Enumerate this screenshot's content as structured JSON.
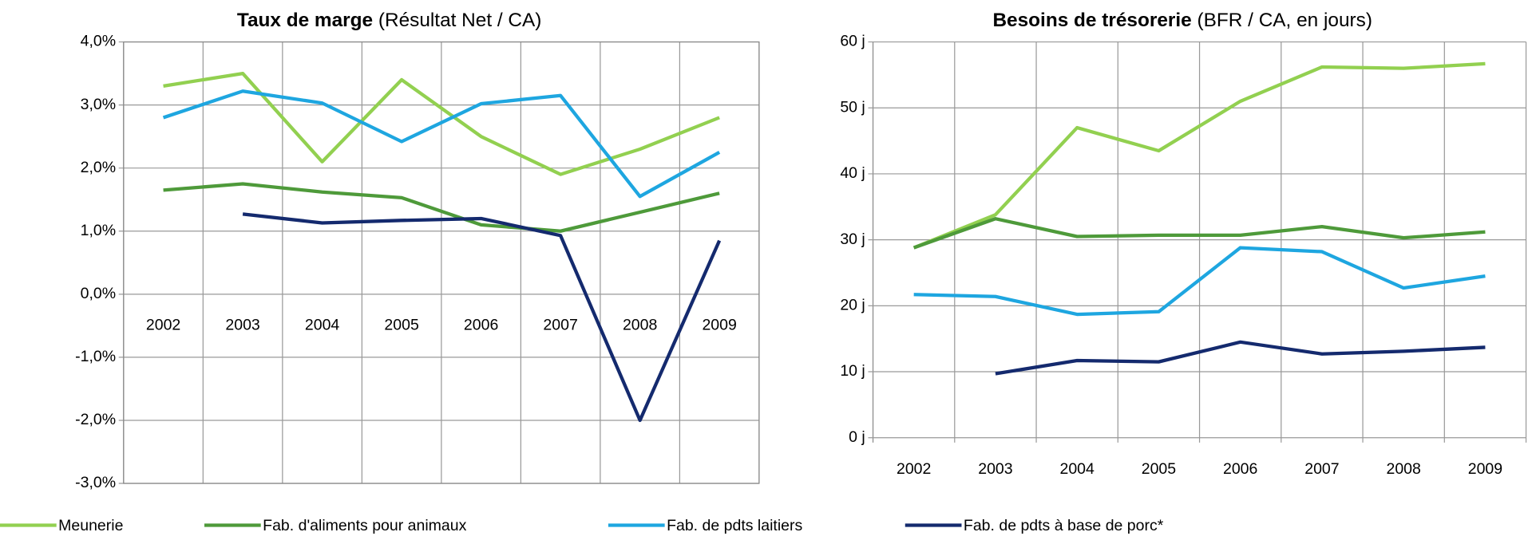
{
  "chart_data": [
    {
      "type": "line",
      "title": "Taux de marge",
      "subtitle": "(Résultat Net / CA)",
      "categories": [
        "2002",
        "2003",
        "2004",
        "2005",
        "2006",
        "2007",
        "2008",
        "2009"
      ],
      "ylim": [
        -3,
        4
      ],
      "yticks": [
        {
          "value": -3,
          "label": "-3,0%"
        },
        {
          "value": -2,
          "label": "-2,0%"
        },
        {
          "value": -1,
          "label": "-1,0%"
        },
        {
          "value": 0,
          "label": "0,0%"
        },
        {
          "value": 1,
          "label": "1,0%"
        },
        {
          "value": 2,
          "label": "2,0%"
        },
        {
          "value": 3,
          "label": "3,0%"
        },
        {
          "value": 4,
          "label": "4,0%"
        }
      ],
      "grid": true,
      "series": [
        {
          "name": "Meunerie",
          "color": "#92d050",
          "values": [
            3.3,
            3.5,
            2.1,
            3.4,
            2.5,
            1.9,
            2.3,
            2.8
          ]
        },
        {
          "name": "Fab. d'aliments pour animaux",
          "color": "#4e9a3a",
          "values": [
            1.65,
            1.75,
            1.62,
            1.53,
            1.1,
            1.0,
            1.3,
            1.6
          ]
        },
        {
          "name": "Fab. de pdts laitiers",
          "color": "#1ea6e0",
          "values": [
            2.8,
            3.22,
            3.03,
            2.42,
            3.02,
            3.15,
            1.55,
            2.25
          ]
        },
        {
          "name": "Fab. de pdts à base de porc*",
          "color": "#142a6e",
          "values": [
            null,
            1.27,
            1.13,
            1.17,
            1.2,
            0.93,
            -2.0,
            0.85
          ]
        }
      ]
    },
    {
      "type": "line",
      "title": "Besoins de trésorerie",
      "subtitle": "(BFR / CA, en jours)",
      "categories": [
        "2002",
        "2003",
        "2004",
        "2005",
        "2006",
        "2007",
        "2008",
        "2009"
      ],
      "ylim": [
        0,
        60
      ],
      "yticks": [
        {
          "value": 0,
          "label": "0 j"
        },
        {
          "value": 10,
          "label": "10 j"
        },
        {
          "value": 20,
          "label": "20 j"
        },
        {
          "value": 30,
          "label": "30 j"
        },
        {
          "value": 40,
          "label": "40 j"
        },
        {
          "value": 50,
          "label": "50 j"
        },
        {
          "value": 60,
          "label": "60 j"
        }
      ],
      "grid": true,
      "series": [
        {
          "name": "Meunerie",
          "color": "#92d050",
          "values": [
            28.8,
            33.8,
            47,
            43.5,
            51,
            56.2,
            56,
            56.7
          ]
        },
        {
          "name": "Fab. d'aliments pour animaux",
          "color": "#4e9a3a",
          "values": [
            28.8,
            33.2,
            30.5,
            30.7,
            30.7,
            32,
            30.3,
            31.2
          ]
        },
        {
          "name": "Fab. de pdts laitiers",
          "color": "#1ea6e0",
          "values": [
            21.7,
            21.4,
            18.7,
            19.1,
            28.8,
            28.2,
            22.7,
            24.5
          ]
        },
        {
          "name": "Fab. de pdts à base de porc*",
          "color": "#142a6e",
          "values": [
            null,
            9.7,
            11.7,
            11.5,
            14.5,
            12.7,
            13.1,
            13.7
          ]
        }
      ]
    }
  ]
}
